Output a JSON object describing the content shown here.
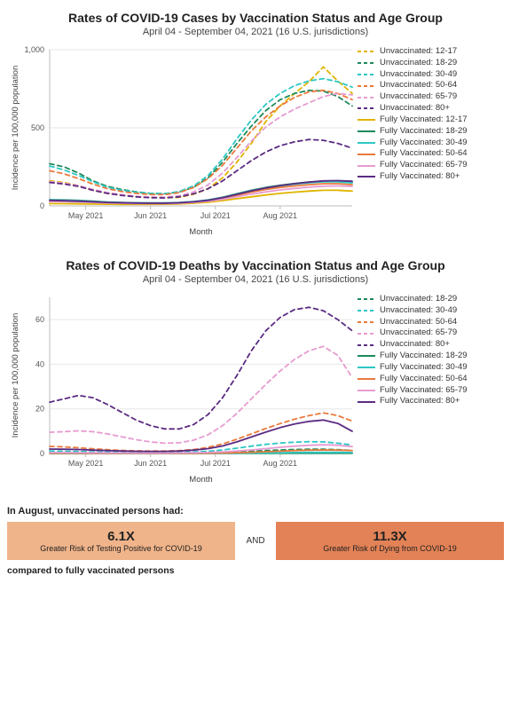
{
  "background_color": "#ffffff",
  "font_family": "Segoe UI, Arial, sans-serif",
  "x_categories": [
    "May 2021",
    "Jun 2021",
    "Jul 2021",
    "Aug 2021"
  ],
  "x_label": "Month",
  "y_label": "Incidence per 100,000 population",
  "chart_cases": {
    "title": "Rates of COVID-19 Cases by Vaccination Status and Age Group",
    "subtitle": "April 04 - September 04, 2021 (16 U.S. jurisdictions)",
    "y_min": 0,
    "y_max": 1000,
    "y_ticks": [
      0,
      500,
      1000
    ],
    "x_points": [
      0,
      1,
      2,
      3,
      4,
      5,
      6,
      7,
      8,
      9,
      10,
      11,
      12,
      13,
      14,
      15,
      16,
      17,
      18,
      19,
      20,
      21
    ],
    "grid_color": "#e7e7e7",
    "axis_color": "#bdbdbd",
    "series": [
      {
        "label": "Unvaccinated: 12-17",
        "color": "#e0b400",
        "dash": true,
        "data": [
          160,
          150,
          130,
          100,
          80,
          70,
          60,
          55,
          52,
          55,
          75,
          110,
          180,
          280,
          400,
          540,
          640,
          720,
          795,
          890,
          800,
          720
        ]
      },
      {
        "label": "Unvaccinated: 18-29",
        "color": "#1e8a5a",
        "dash": true,
        "data": [
          270,
          250,
          210,
          160,
          125,
          105,
          90,
          80,
          78,
          90,
          120,
          180,
          280,
          400,
          510,
          610,
          680,
          720,
          740,
          735,
          700,
          640
        ]
      },
      {
        "label": "Unvaccinated: 30-49",
        "color": "#2dc7c4",
        "dash": true,
        "data": [
          255,
          230,
          195,
          155,
          120,
          100,
          88,
          80,
          78,
          92,
          128,
          195,
          300,
          430,
          550,
          650,
          720,
          770,
          800,
          815,
          795,
          760
        ]
      },
      {
        "label": "Unvaccinated: 50-64",
        "color": "#ea7a3c",
        "dash": true,
        "data": [
          225,
          205,
          175,
          140,
          110,
          92,
          80,
          73,
          72,
          85,
          118,
          175,
          260,
          370,
          480,
          570,
          640,
          695,
          730,
          740,
          720,
          680
        ]
      },
      {
        "label": "Unvaccinated: 65-79",
        "color": "#e79bd1",
        "dash": true,
        "data": [
          155,
          145,
          130,
          105,
          85,
          72,
          62,
          57,
          56,
          65,
          90,
          135,
          210,
          310,
          415,
          505,
          570,
          620,
          660,
          700,
          720,
          710
        ]
      },
      {
        "label": "Unvaccinated: 80+",
        "color": "#5b2b82",
        "dash": true,
        "data": [
          150,
          140,
          125,
          100,
          80,
          67,
          58,
          52,
          51,
          58,
          78,
          110,
          160,
          225,
          290,
          345,
          385,
          410,
          425,
          420,
          400,
          370
        ]
      },
      {
        "label": "Fully Vaccinated: 12-17",
        "color": "#e0b400",
        "dash": false,
        "data": [
          15,
          14,
          13,
          12,
          11,
          10,
          10,
          10,
          11,
          13,
          17,
          24,
          34,
          46,
          58,
          70,
          80,
          88,
          95,
          100,
          100,
          95
        ]
      },
      {
        "label": "Fully Vaccinated: 18-29",
        "color": "#1e8a5a",
        "dash": false,
        "data": [
          40,
          38,
          35,
          30,
          25,
          22,
          20,
          19,
          19,
          22,
          28,
          38,
          55,
          78,
          100,
          118,
          132,
          143,
          152,
          158,
          158,
          150
        ]
      },
      {
        "label": "Fully Vaccinated: 30-49",
        "color": "#2dc7c4",
        "dash": false,
        "data": [
          38,
          36,
          33,
          28,
          24,
          21,
          19,
          18,
          18,
          21,
          27,
          37,
          53,
          75,
          97,
          115,
          128,
          139,
          148,
          154,
          154,
          147
        ]
      },
      {
        "label": "Fully Vaccinated: 50-64",
        "color": "#ea7a3c",
        "dash": false,
        "data": [
          34,
          32,
          29,
          25,
          21,
          19,
          17,
          16,
          16,
          19,
          25,
          34,
          48,
          68,
          88,
          105,
          118,
          128,
          136,
          142,
          142,
          136
        ]
      },
      {
        "label": "Fully Vaccinated: 65-79",
        "color": "#e79bd1",
        "dash": false,
        "data": [
          28,
          27,
          25,
          22,
          19,
          17,
          15,
          15,
          15,
          17,
          22,
          30,
          42,
          58,
          75,
          90,
          102,
          112,
          120,
          126,
          128,
          125
        ]
      },
      {
        "label": "Fully Vaccinated: 80+",
        "color": "#5b2b82",
        "dash": false,
        "data": [
          35,
          33,
          30,
          26,
          22,
          20,
          18,
          17,
          17,
          20,
          26,
          36,
          52,
          74,
          96,
          115,
          130,
          142,
          152,
          160,
          162,
          158
        ]
      }
    ]
  },
  "chart_deaths": {
    "title": "Rates of COVID-19 Deaths by Vaccination Status and Age Group",
    "subtitle": "April 04 - September 04, 2021 (16 U.S. jurisdictions)",
    "y_min": 0,
    "y_max": 70,
    "y_ticks": [
      0,
      20,
      40,
      60
    ],
    "x_points": [
      0,
      1,
      2,
      3,
      4,
      5,
      6,
      7,
      8,
      9,
      10,
      11,
      12,
      13,
      14,
      15,
      16,
      17,
      18,
      19,
      20,
      21
    ],
    "grid_color": "#e7e7e7",
    "axis_color": "#bdbdbd",
    "series": [
      {
        "label": "Unvaccinated: 18-29",
        "color": "#1e8a5a",
        "dash": true,
        "data": [
          0.2,
          0.2,
          0.2,
          0.2,
          0.15,
          0.15,
          0.12,
          0.12,
          0.12,
          0.15,
          0.2,
          0.3,
          0.45,
          0.7,
          1.0,
          1.3,
          1.6,
          1.8,
          1.9,
          1.9,
          1.7,
          1.4
        ]
      },
      {
        "label": "Unvaccinated: 30-49",
        "color": "#2dc7c4",
        "dash": true,
        "data": [
          1.1,
          1.0,
          0.9,
          0.75,
          0.6,
          0.5,
          0.45,
          0.42,
          0.42,
          0.5,
          0.7,
          1.0,
          1.6,
          2.4,
          3.3,
          4.1,
          4.7,
          5.1,
          5.3,
          5.2,
          4.6,
          3.8
        ]
      },
      {
        "label": "Unvaccinated: 50-64",
        "color": "#ea7a3c",
        "dash": true,
        "data": [
          3.2,
          3.0,
          2.6,
          2.1,
          1.7,
          1.4,
          1.2,
          1.1,
          1.1,
          1.3,
          1.8,
          2.8,
          4.3,
          6.4,
          8.8,
          11.2,
          13.4,
          15.4,
          17.0,
          18.2,
          17.0,
          14.5
        ]
      },
      {
        "label": "Unvaccinated: 65-79",
        "color": "#e79bd1",
        "dash": true,
        "data": [
          9.5,
          9.8,
          10.2,
          9.8,
          8.8,
          7.5,
          6.2,
          5.2,
          4.6,
          4.8,
          6.0,
          8.4,
          12.5,
          18.0,
          24.5,
          31.0,
          37.0,
          42.2,
          46.0,
          48.0,
          44.0,
          34.0
        ]
      },
      {
        "label": "Unvaccinated: 80+",
        "color": "#5b2b82",
        "dash": true,
        "data": [
          23.0,
          24.5,
          26.0,
          25.0,
          22.0,
          18.5,
          15.0,
          12.5,
          11.0,
          11.0,
          13.0,
          17.5,
          25.0,
          35.0,
          46.0,
          55.0,
          61.0,
          64.5,
          65.5,
          64.0,
          60.0,
          55.0
        ]
      },
      {
        "label": "Fully Vaccinated: 18-29",
        "color": "#1e8a5a",
        "dash": false,
        "data": [
          0.01,
          0.01,
          0.01,
          0.01,
          0.01,
          0.01,
          0.01,
          0.01,
          0.01,
          0.01,
          0.01,
          0.02,
          0.03,
          0.04,
          0.06,
          0.08,
          0.1,
          0.12,
          0.13,
          0.13,
          0.12,
          0.1
        ]
      },
      {
        "label": "Fully Vaccinated: 30-49",
        "color": "#2dc7c4",
        "dash": false,
        "data": [
          0.03,
          0.03,
          0.03,
          0.02,
          0.02,
          0.02,
          0.02,
          0.02,
          0.02,
          0.02,
          0.03,
          0.05,
          0.08,
          0.13,
          0.2,
          0.28,
          0.36,
          0.44,
          0.5,
          0.53,
          0.5,
          0.43
        ]
      },
      {
        "label": "Fully Vaccinated: 50-64",
        "color": "#ea7a3c",
        "dash": false,
        "data": [
          0.12,
          0.11,
          0.1,
          0.08,
          0.07,
          0.06,
          0.05,
          0.05,
          0.05,
          0.06,
          0.08,
          0.12,
          0.2,
          0.35,
          0.55,
          0.8,
          1.05,
          1.3,
          1.5,
          1.6,
          1.5,
          1.3
        ]
      },
      {
        "label": "Fully Vaccinated: 65-79",
        "color": "#e79bd1",
        "dash": false,
        "data": [
          0.4,
          0.38,
          0.35,
          0.3,
          0.25,
          0.22,
          0.2,
          0.19,
          0.19,
          0.22,
          0.3,
          0.45,
          0.7,
          1.1,
          1.6,
          2.2,
          2.8,
          3.3,
          3.7,
          3.9,
          3.7,
          3.1
        ]
      },
      {
        "label": "Fully Vaccinated: 80+",
        "color": "#5b2b82",
        "dash": false,
        "data": [
          2.0,
          1.9,
          1.8,
          1.5,
          1.3,
          1.1,
          1.0,
          0.95,
          0.95,
          1.1,
          1.5,
          2.2,
          3.4,
          5.2,
          7.4,
          9.6,
          11.6,
          13.2,
          14.4,
          15.0,
          13.5,
          10.0
        ]
      }
    ]
  },
  "summary": {
    "heading": "In August, unvaccinated persons had:",
    "box1_value": "6.1X",
    "box1_text": "Greater Risk of Testing Positive for COVID-19",
    "box1_color": "#f0b48a",
    "connector": "AND",
    "box2_value": "11.3X",
    "box2_text": "Greater Risk of Dying from COVID-19",
    "box2_color": "#e38256",
    "footer": "compared to fully vaccinated persons"
  }
}
